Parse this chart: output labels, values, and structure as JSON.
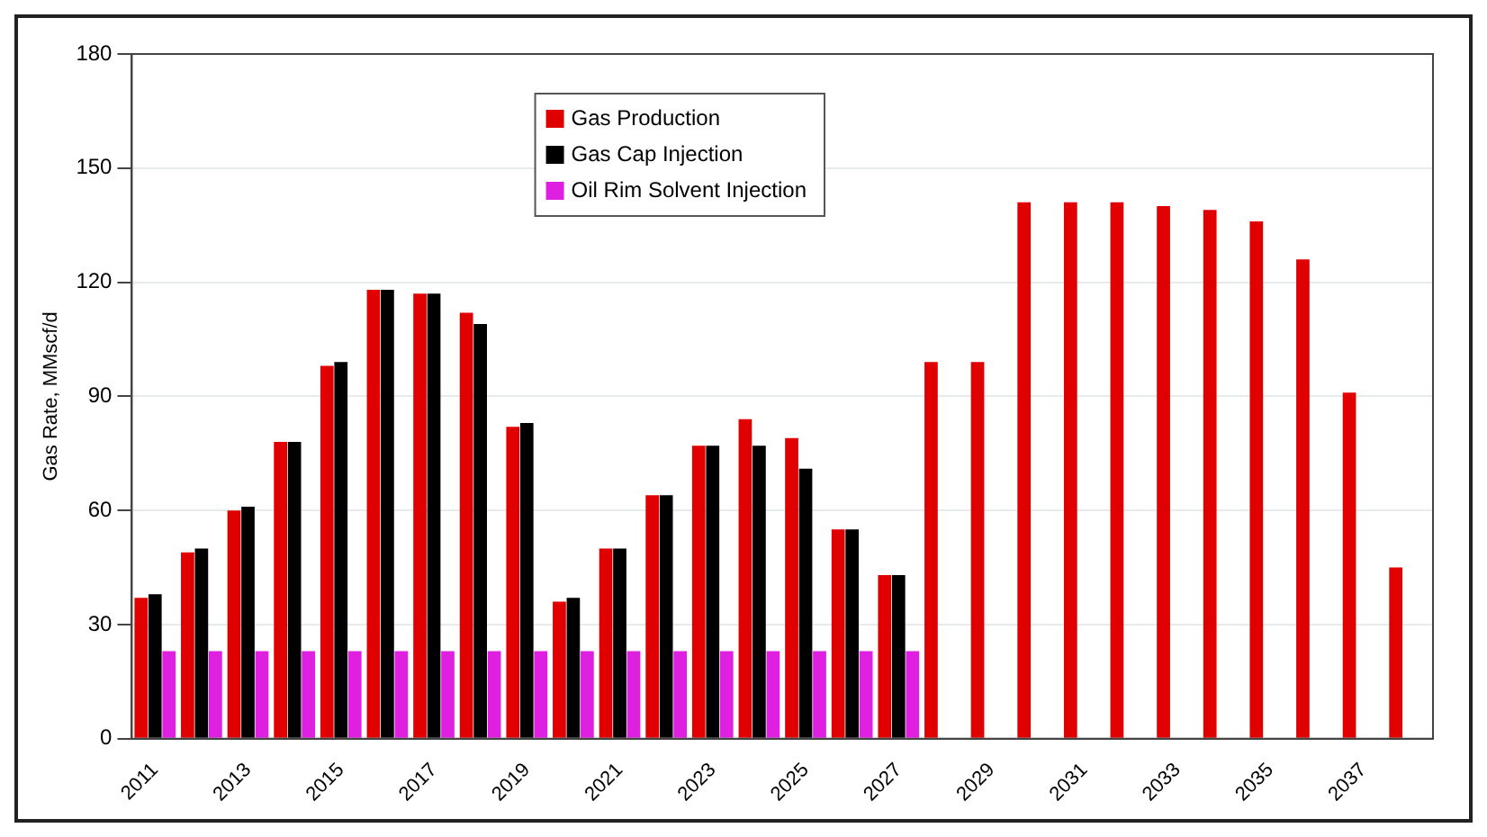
{
  "chart_data": {
    "type": "bar",
    "ylabel": "Gas Rate, MMscf/d",
    "categories": [
      "2011",
      null,
      "2013",
      null,
      "2015",
      null,
      "2017",
      null,
      "2019",
      null,
      "2021",
      null,
      "2023",
      null,
      "2025",
      null,
      "2027",
      null,
      "2029",
      null,
      "2031",
      null,
      "2033",
      null,
      "2035",
      null,
      "2037",
      null
    ],
    "series": [
      {
        "name": "Gas Production",
        "color": "#e00000",
        "values": [
          37,
          49,
          60,
          78,
          98,
          118,
          117,
          112,
          82,
          36,
          50,
          64,
          77,
          84,
          79,
          55,
          43,
          99,
          99,
          141,
          141,
          141,
          140,
          139,
          136,
          126,
          91,
          45
        ]
      },
      {
        "name": "Gas Cap Injection",
        "color": "#000000",
        "values": [
          38,
          50,
          61,
          78,
          99,
          118,
          117,
          109,
          83,
          37,
          50,
          64,
          77,
          77,
          71,
          55,
          43,
          null,
          null,
          null,
          null,
          null,
          null,
          null,
          null,
          null,
          null,
          null
        ]
      },
      {
        "name": "Oil Rim Solvent Injection",
        "color": "#e020e0",
        "values": [
          23,
          23,
          23,
          23,
          23,
          23,
          23,
          23,
          23,
          23,
          23,
          23,
          23,
          23,
          23,
          23,
          23,
          null,
          null,
          null,
          null,
          null,
          null,
          null,
          null,
          null,
          null,
          null
        ]
      }
    ],
    "ylim": [
      0,
      180
    ],
    "yticks": [
      0,
      30,
      60,
      90,
      120,
      150,
      180
    ],
    "grid": "y",
    "legend": "top"
  }
}
